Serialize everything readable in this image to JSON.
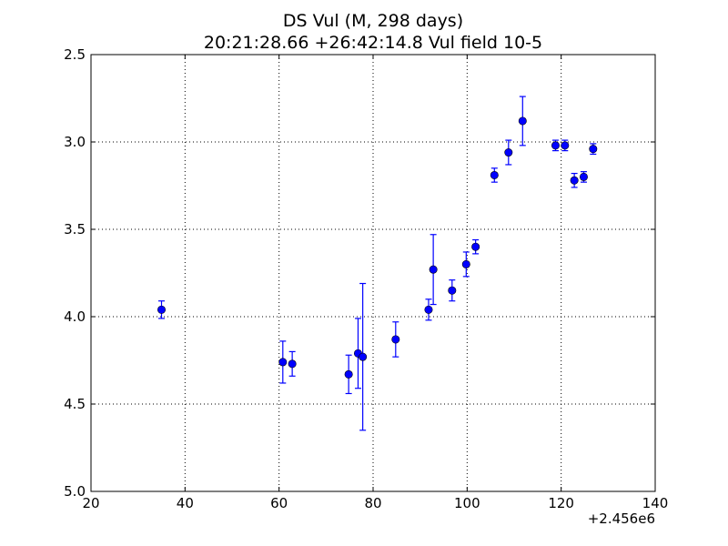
{
  "chart_data": {
    "type": "scatter",
    "title": "DS Vul (M, 298 days)",
    "subtitle": "20:21:28.66 +26:42:14.8 Vul field 10-5",
    "xlabel": "",
    "ylabel": "",
    "x_offset_label": "+2.456e6",
    "xlim": [
      20,
      140
    ],
    "ylim": [
      2.5,
      5.0
    ],
    "y_inverted": true,
    "xticks": [
      20,
      40,
      60,
      80,
      100,
      120,
      140
    ],
    "xtick_labels": [
      "20",
      "40",
      "60",
      "80",
      "100",
      "120",
      "140"
    ],
    "yticks": [
      2.5,
      3.0,
      3.5,
      4.0,
      4.5,
      5.0
    ],
    "ytick_labels": [
      "2.5",
      "3.0",
      "3.5",
      "4.0",
      "4.5",
      "5.0"
    ],
    "grid": true,
    "marker_color": "#0000ff",
    "errorbar_color": "#0000ff",
    "points": [
      {
        "x": 35.0,
        "y": 3.96,
        "err": 0.05
      },
      {
        "x": 60.8,
        "y": 4.26,
        "err": 0.12
      },
      {
        "x": 62.8,
        "y": 4.27,
        "err": 0.07
      },
      {
        "x": 74.8,
        "y": 4.33,
        "err": 0.11
      },
      {
        "x": 76.8,
        "y": 4.21,
        "err": 0.2
      },
      {
        "x": 77.8,
        "y": 4.23,
        "err": 0.42
      },
      {
        "x": 84.8,
        "y": 4.13,
        "err": 0.1
      },
      {
        "x": 91.8,
        "y": 3.96,
        "err": 0.06
      },
      {
        "x": 92.8,
        "y": 3.73,
        "err": 0.2
      },
      {
        "x": 96.8,
        "y": 3.85,
        "err": 0.06
      },
      {
        "x": 99.8,
        "y": 3.7,
        "err": 0.07
      },
      {
        "x": 101.8,
        "y": 3.6,
        "err": 0.04
      },
      {
        "x": 105.8,
        "y": 3.19,
        "err": 0.04
      },
      {
        "x": 108.8,
        "y": 3.06,
        "err": 0.07
      },
      {
        "x": 111.8,
        "y": 2.88,
        "err": 0.14
      },
      {
        "x": 118.8,
        "y": 3.02,
        "err": 0.03
      },
      {
        "x": 120.8,
        "y": 3.02,
        "err": 0.03
      },
      {
        "x": 122.8,
        "y": 3.22,
        "err": 0.04
      },
      {
        "x": 124.8,
        "y": 3.2,
        "err": 0.03
      },
      {
        "x": 126.8,
        "y": 3.04,
        "err": 0.03
      }
    ]
  }
}
